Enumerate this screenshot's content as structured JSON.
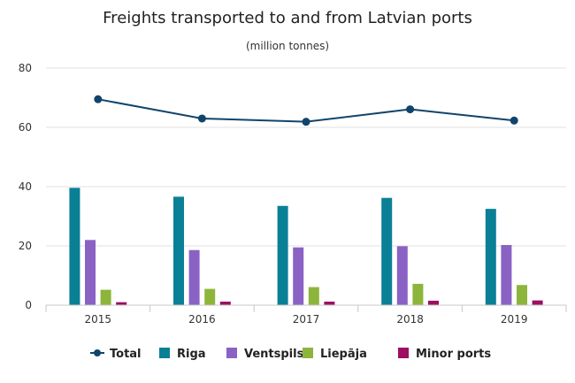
{
  "chart_data": {
    "type": "bar",
    "title": "Freights transported to and from Latvian ports",
    "subtitle": "(million tonnes)",
    "xlabel": "",
    "ylabel": "",
    "ylim": [
      0,
      80
    ],
    "yticks": [
      0,
      20,
      40,
      60,
      80
    ],
    "categories": [
      "2015",
      "2016",
      "2017",
      "2018",
      "2019"
    ],
    "series": [
      {
        "name": "Riga",
        "type": "bar",
        "color": "#0a8096",
        "values": [
          39.6,
          36.6,
          33.5,
          36.2,
          32.5
        ]
      },
      {
        "name": "Ventspils",
        "type": "bar",
        "color": "#8a62c4",
        "values": [
          22.0,
          18.6,
          19.5,
          19.9,
          20.3
        ]
      },
      {
        "name": "Liepāja",
        "type": "bar",
        "color": "#8db53c",
        "values": [
          5.2,
          5.5,
          6.1,
          7.2,
          6.8
        ]
      },
      {
        "name": "Minor ports",
        "type": "bar",
        "color": "#9c0f62",
        "values": [
          1.0,
          1.2,
          1.2,
          1.5,
          1.6
        ]
      },
      {
        "name": "Total",
        "type": "line",
        "color": "#11446b",
        "values": [
          69.5,
          63.0,
          61.9,
          66.1,
          62.3
        ]
      }
    ],
    "legend_position": "bottom",
    "grid": true
  }
}
